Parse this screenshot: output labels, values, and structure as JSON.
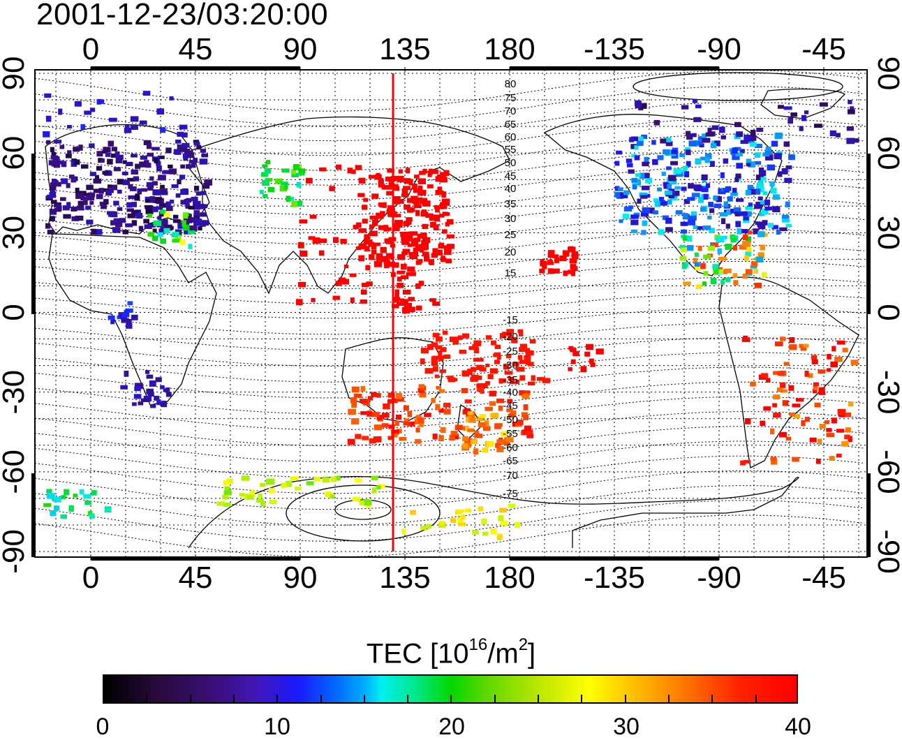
{
  "title": "2001-12-23/03:20:00",
  "map": {
    "lon_ticks": [
      "0",
      "45",
      "90",
      "135",
      "180",
      "-135",
      "-90",
      "-45"
    ],
    "lat_ticks": [
      "90",
      "60",
      "30",
      "0",
      "-30",
      "-60",
      "-90"
    ],
    "mlat_labels": [
      "80",
      "75",
      "70",
      "65",
      "60",
      "55",
      "50",
      "45",
      "40",
      "35",
      "30",
      "25",
      "20",
      "15",
      "-15",
      "-20",
      "-25",
      "-30",
      "-35",
      "-40",
      "-45",
      "-50",
      "-55",
      "-60",
      "-65",
      "-70",
      "-75"
    ],
    "marker_line_color": "#ff0000",
    "marker_line_lon": 130
  },
  "colorbar": {
    "title_main": "TEC  [10",
    "title_exp1": "16",
    "title_mid": "/m",
    "title_exp2": "2",
    "title_end": "]",
    "min": 0,
    "max": 40,
    "ticks": [
      "0",
      "10",
      "20",
      "30",
      "40"
    ],
    "colors": [
      "#000000",
      "#3a0f7a",
      "#1a1aff",
      "#00f0f0",
      "#00d800",
      "#ffff00",
      "#ff6a00",
      "#ff0000"
    ]
  },
  "tec_regions": [
    {
      "name": "europe",
      "value": 6
    },
    {
      "name": "north-america",
      "value": 12
    },
    {
      "name": "japan",
      "value": 40
    },
    {
      "name": "oceania",
      "value": 38
    },
    {
      "name": "antarctica",
      "value": 27
    }
  ]
}
